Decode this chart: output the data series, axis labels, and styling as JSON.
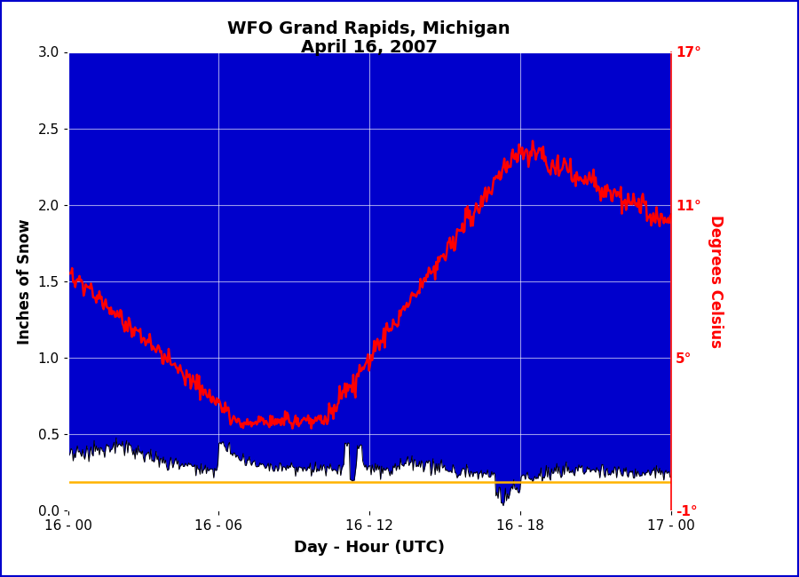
{
  "title_line1": "WFO Grand Rapids, Michigan",
  "title_line2": "April 16, 2007",
  "xlabel": "Day - Hour (UTC)",
  "ylabel_left": "Inches of Snow",
  "ylabel_right": "Degrees Celsius",
  "bg_color": "#0000CC",
  "snow_fill_color": "white",
  "snow_line_color": "black",
  "temp_line_color": "red",
  "yellow_line_color": "#FFB300",
  "ylim_left": [
    0.0,
    3.0
  ],
  "ylim_right": [
    -1.0,
    17.0
  ],
  "xtick_positions": [
    0,
    6,
    12,
    18,
    24
  ],
  "xtick_labels": [
    "16 - 00",
    "16 - 06",
    "16 - 12",
    "16 - 18",
    "17 - 00"
  ],
  "ytick_left": [
    0.0,
    0.5,
    1.0,
    1.5,
    2.0,
    2.5,
    3.0
  ],
  "ytick_right_vals": [
    -1,
    5,
    11,
    17
  ],
  "ytick_right_labels": [
    "-1°",
    "5°",
    "11°",
    "17°"
  ],
  "yellow_line_y": 0.185,
  "grid_color": "white",
  "grid_alpha": 0.6,
  "fig_border_color": "#0000CC",
  "fig_border_lw": 3
}
